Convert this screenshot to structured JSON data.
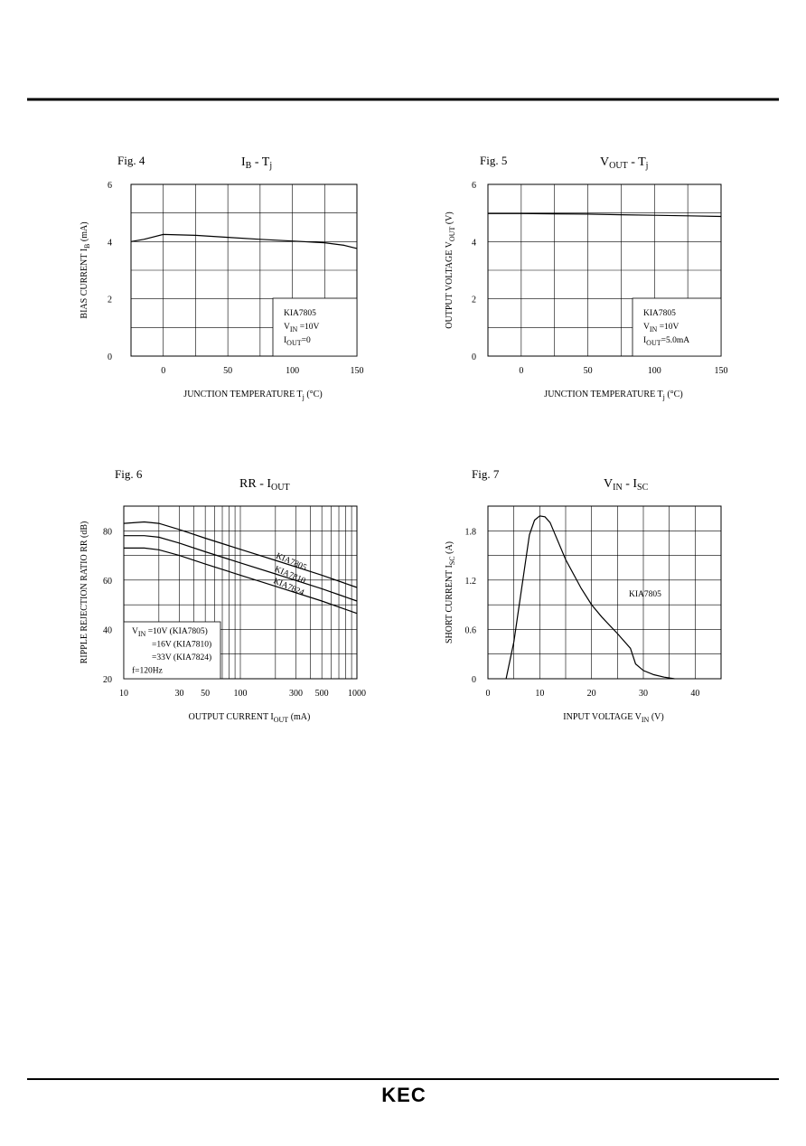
{
  "footer": {
    "logo_text": "KEC"
  },
  "chart_data": [
    {
      "type": "line",
      "fig_label": "Fig. 4",
      "title": {
        "main": "I",
        "sub": "B",
        "sep": " - ",
        "main2": "T",
        "sub2": "j"
      },
      "xlabel": {
        "text": "JUNCTION TEMPERATURE T",
        "sub": "j",
        "tail": " (°C)"
      },
      "ylabel": {
        "text": "BIAS CURRENT I",
        "sub": "B",
        "tail": " (mA)"
      },
      "xlim": [
        -25,
        150
      ],
      "ylim": [
        0,
        6
      ],
      "xscale": "linear",
      "xgrid": [
        -25,
        0,
        25,
        50,
        75,
        100,
        125,
        150
      ],
      "ygrid": [
        0,
        1,
        2,
        3,
        4,
        5,
        6
      ],
      "xticks": [
        0,
        50,
        100,
        150
      ],
      "yticks": [
        0,
        2,
        4,
        6
      ],
      "notes": [
        {
          "text": "KIA7805"
        },
        {
          "text": "V",
          "sub": "IN",
          "tail": " =10V"
        },
        {
          "text": "I",
          "sub": "OUT",
          "tail": "=0"
        }
      ],
      "series": [
        {
          "name": "",
          "x": [
            -25,
            -15,
            0,
            25,
            50,
            75,
            100,
            125,
            140,
            150
          ],
          "y": [
            4.0,
            4.08,
            4.25,
            4.22,
            4.15,
            4.08,
            4.02,
            3.96,
            3.87,
            3.76
          ]
        }
      ]
    },
    {
      "type": "line",
      "fig_label": "Fig. 5",
      "title": {
        "main": "V",
        "sub": "OUT",
        "sep": " - ",
        "main2": "T",
        "sub2": "j"
      },
      "xlabel": {
        "text": "JUNCTION TEMPERATURE T",
        "sub": "j",
        "tail": " (°C)"
      },
      "ylabel": {
        "text": "OUTPUT VOLTAGE V",
        "sub": "OUT",
        "tail": " (V)"
      },
      "xlim": [
        -25,
        150
      ],
      "ylim": [
        0,
        6
      ],
      "xscale": "linear",
      "xgrid": [
        -25,
        0,
        25,
        50,
        75,
        100,
        125,
        150
      ],
      "ygrid": [
        0,
        1,
        2,
        3,
        4,
        5,
        6
      ],
      "xticks": [
        0,
        50,
        100,
        150
      ],
      "yticks": [
        0,
        2,
        4,
        6
      ],
      "notes": [
        {
          "text": "KIA7805"
        },
        {
          "text": "V",
          "sub": "IN",
          "tail": " =10V"
        },
        {
          "text": "I",
          "sub": "OUT",
          "tail": "=5.0mA"
        }
      ],
      "series": [
        {
          "name": "",
          "x": [
            -25,
            0,
            25,
            50,
            75,
            100,
            125,
            150
          ],
          "y": [
            4.98,
            4.98,
            4.97,
            4.96,
            4.94,
            4.92,
            4.9,
            4.88
          ]
        }
      ]
    },
    {
      "type": "line",
      "fig_label": "Fig. 6",
      "title": {
        "main": "RR",
        "sub": "",
        "sep": " - ",
        "main2": "I",
        "sub2": "OUT"
      },
      "xlabel": {
        "text": "OUTPUT CURRENT I",
        "sub": "OUT",
        "tail": " (mA)"
      },
      "ylabel": {
        "text": "RIPPLE REJECTION RATIO RR (dB)",
        "sub": "",
        "tail": ""
      },
      "xlim": [
        10,
        1000
      ],
      "ylim": [
        20,
        90
      ],
      "xscale": "log",
      "xgrid": [
        10,
        20,
        30,
        40,
        50,
        60,
        70,
        80,
        90,
        100,
        200,
        300,
        400,
        500,
        600,
        700,
        800,
        900,
        1000
      ],
      "ygrid": [
        20,
        30,
        40,
        50,
        60,
        70,
        80,
        90
      ],
      "xticks": [
        10,
        30,
        50,
        100,
        300,
        500,
        1000
      ],
      "yticks": [
        20,
        40,
        60,
        80
      ],
      "notes": [
        {
          "text": "V",
          "sub": "IN",
          "tail": " =10V (KIA7805)"
        },
        {
          "text": "=16V (KIA7810)",
          "indent": true
        },
        {
          "text": "=33V (KIA7824)",
          "indent": true
        },
        {
          "text": "f=120Hz"
        }
      ],
      "series": [
        {
          "name": "KIA7805",
          "x": [
            10,
            15,
            20,
            30,
            50,
            100,
            200,
            500,
            1000
          ],
          "y": [
            83,
            83.6,
            83,
            80.5,
            77,
            72.5,
            68,
            62,
            57
          ]
        },
        {
          "name": "KIA7810",
          "x": [
            10,
            15,
            20,
            30,
            50,
            100,
            200,
            500,
            1000
          ],
          "y": [
            78,
            78,
            77.4,
            75,
            71.5,
            67,
            62.5,
            56.5,
            51.5
          ]
        },
        {
          "name": "KIA7824",
          "x": [
            10,
            15,
            20,
            30,
            50,
            100,
            200,
            500,
            1000
          ],
          "y": [
            73,
            73,
            72.3,
            70,
            66.5,
            62,
            57.5,
            51.5,
            46.5
          ]
        }
      ]
    },
    {
      "type": "line",
      "fig_label": "Fig. 7",
      "title": {
        "main": "V",
        "sub": "IN",
        "sep": " - ",
        "main2": "I",
        "sub2": "SC"
      },
      "xlabel": {
        "text": "INPUT VOLTAGE V",
        "sub": "IN",
        "tail": " (V)"
      },
      "ylabel": {
        "text": "SHORT CURRENT I",
        "sub": "SC",
        "tail": " (A)"
      },
      "xlim": [
        0,
        45
      ],
      "ylim": [
        0,
        2.1
      ],
      "xscale": "linear",
      "xgrid": [
        0,
        5,
        10,
        15,
        20,
        25,
        30,
        35,
        40,
        45
      ],
      "ygrid": [
        0,
        0.3,
        0.6,
        0.9,
        1.2,
        1.5,
        1.8,
        2.1
      ],
      "xticks": [
        0,
        10,
        20,
        30,
        40
      ],
      "yticks": [
        0,
        0.6,
        1.2,
        1.8
      ],
      "notes": [
        {
          "text": "KIA7805"
        }
      ],
      "series": [
        {
          "name": "",
          "x": [
            3.5,
            5,
            6.5,
            8,
            9,
            10,
            11,
            12,
            13,
            15,
            18,
            20,
            22,
            25,
            27.5,
            28.5,
            30,
            32,
            34,
            36
          ],
          "y": [
            0,
            0.45,
            1.1,
            1.75,
            1.93,
            1.98,
            1.97,
            1.9,
            1.75,
            1.45,
            1.1,
            0.9,
            0.75,
            0.55,
            0.37,
            0.18,
            0.1,
            0.05,
            0.02,
            0
          ]
        }
      ]
    }
  ]
}
